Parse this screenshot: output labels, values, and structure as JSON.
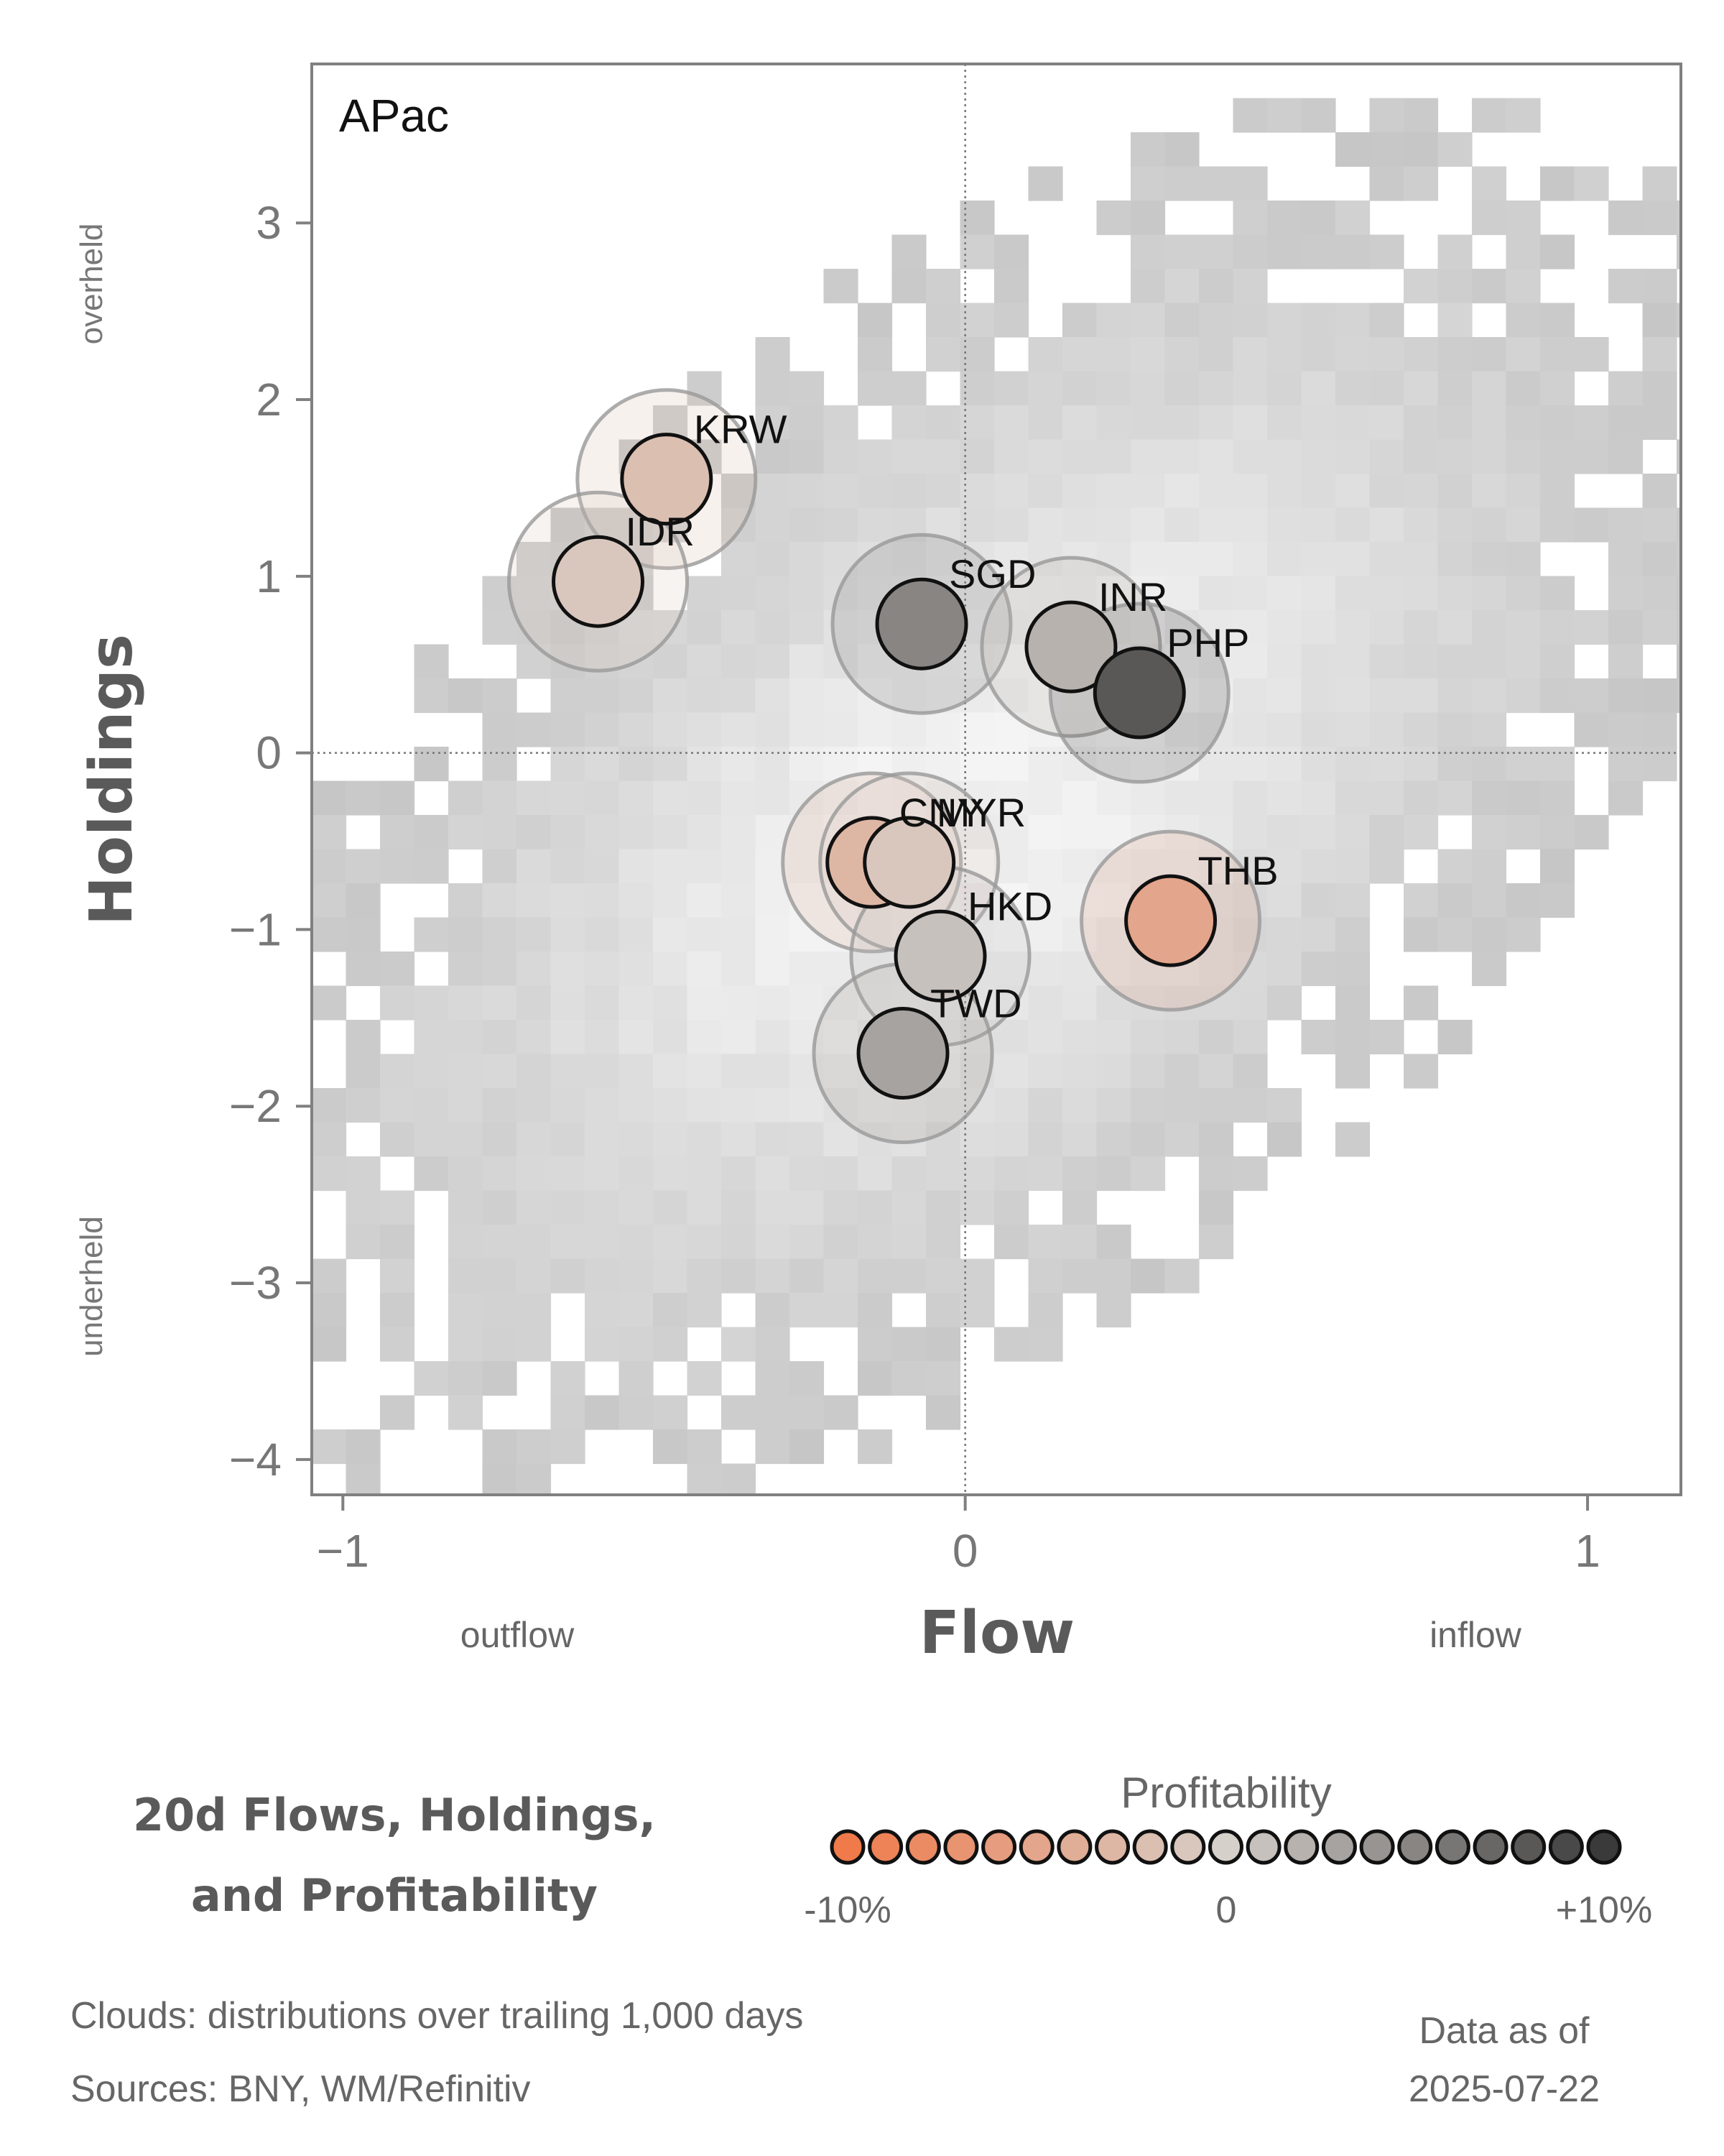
{
  "chart_data": {
    "type": "scatter",
    "panel_label": "APac",
    "xlabel": "Flow",
    "ylabel": "Holdings",
    "xlim": [
      -1.05,
      1.15
    ],
    "ylim": [
      -4.2,
      3.9
    ],
    "x_ticks": [
      -1,
      0,
      1
    ],
    "x_tick_labels": [
      "−1",
      "0",
      "1"
    ],
    "y_ticks": [
      3,
      2,
      1,
      0,
      -1,
      -2,
      -3,
      -4
    ],
    "y_tick_labels": [
      "3",
      "2",
      "1",
      "0",
      "−1",
      "−2",
      "−3",
      "−4"
    ],
    "x_annotations": {
      "left": "outflow",
      "right": "inflow"
    },
    "y_annotations": {
      "top": "overheld",
      "bottom": "underheld"
    },
    "reference_lines": {
      "x": 0,
      "y": 0,
      "style": "dotted"
    },
    "grid": false,
    "points": [
      {
        "label": "KRW",
        "x": -0.48,
        "y": 1.55,
        "profitability": -0.02
      },
      {
        "label": "IDR",
        "x": -0.59,
        "y": 0.97,
        "profitability": -0.01
      },
      {
        "label": "SGD",
        "x": -0.07,
        "y": 0.73,
        "profitability": 0.05
      },
      {
        "label": "INR",
        "x": 0.17,
        "y": 0.6,
        "profitability": 0.02
      },
      {
        "label": "PHP",
        "x": 0.28,
        "y": 0.34,
        "profitability": 0.08
      },
      {
        "label": "CNY",
        "x": -0.15,
        "y": -0.62,
        "profitability": -0.03
      },
      {
        "label": "MYR",
        "x": -0.09,
        "y": -0.62,
        "profitability": -0.01
      },
      {
        "label": "HKD",
        "x": -0.04,
        "y": -1.15,
        "profitability": 0.01
      },
      {
        "label": "TWD",
        "x": -0.1,
        "y": -1.7,
        "profitability": 0.03
      },
      {
        "label": "THB",
        "x": 0.33,
        "y": -0.95,
        "profitability": -0.05
      }
    ],
    "colorbar": {
      "title": "Profitability",
      "min_label": "-10%",
      "mid_label": "0",
      "max_label": "+10%",
      "range": [
        -0.1,
        0.1
      ],
      "low_color": "#f07a4a",
      "mid_color": "#d6d0cb",
      "high_color": "#3a3a3a"
    }
  },
  "caption": {
    "title_line1": "20d Flows, Holdings,",
    "title_line2": "and Profitability",
    "clouds_note": "Clouds:  distributions over trailing 1,000 days",
    "sources_note": "Sources:  BNY, WM/Refinitiv",
    "asof_label": "Data as of",
    "asof_date": "2025-07-22"
  }
}
